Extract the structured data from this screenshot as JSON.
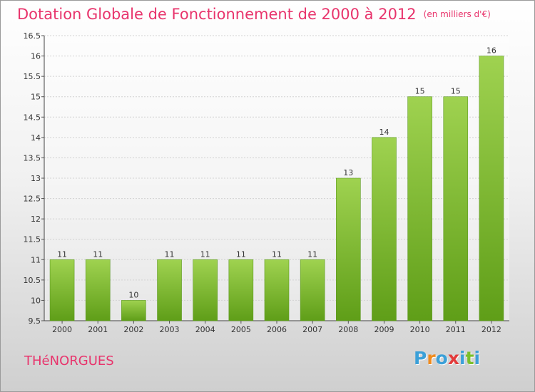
{
  "header": {
    "title": "Dotation Globale de Fonctionnement de 2000 à 2012",
    "subtitle": "(en milliers d'€)"
  },
  "footer": {
    "town": "THéNORGUES",
    "brand_letters": [
      "P",
      "r",
      "o",
      "x",
      "i",
      "t",
      "i"
    ],
    "brand_colors": [
      "#3ba0d8",
      "#f08a1c",
      "#3ba0d8",
      "#e33b3b",
      "#3ba0d8",
      "#7bbf2a",
      "#3ba0d8"
    ]
  },
  "colors": {
    "title": "#e8346c",
    "bar_top": "#9fd250",
    "bar_bottom": "#5f9e18"
  },
  "chart_data": {
    "type": "bar",
    "title": "Dotation Globale de Fonctionnement de 2000 à 2012",
    "subtitle": "(en milliers d'€)",
    "categories": [
      "2000",
      "2001",
      "2002",
      "2003",
      "2004",
      "2005",
      "2006",
      "2007",
      "2008",
      "2009",
      "2010",
      "2011",
      "2012"
    ],
    "values": [
      11,
      11,
      10,
      11,
      11,
      11,
      11,
      11,
      13,
      14,
      15,
      15,
      16
    ],
    "value_labels": [
      "11",
      "11",
      "10",
      "11",
      "11",
      "11",
      "11",
      "11",
      "13",
      "14",
      "15",
      "15",
      "16"
    ],
    "ylim": [
      9.5,
      16.5
    ],
    "yticks": [
      9.5,
      10,
      10.5,
      11,
      11.5,
      12,
      12.5,
      13,
      13.5,
      14,
      14.5,
      15,
      15.5,
      16,
      16.5
    ],
    "ytick_labels": [
      "9.5",
      "10",
      "10.5",
      "11",
      "11.5",
      "12",
      "12.5",
      "13",
      "13.5",
      "14",
      "14.5",
      "15",
      "15.5",
      "16",
      "16.5"
    ],
    "grid": "horizontal",
    "legend": "none"
  }
}
